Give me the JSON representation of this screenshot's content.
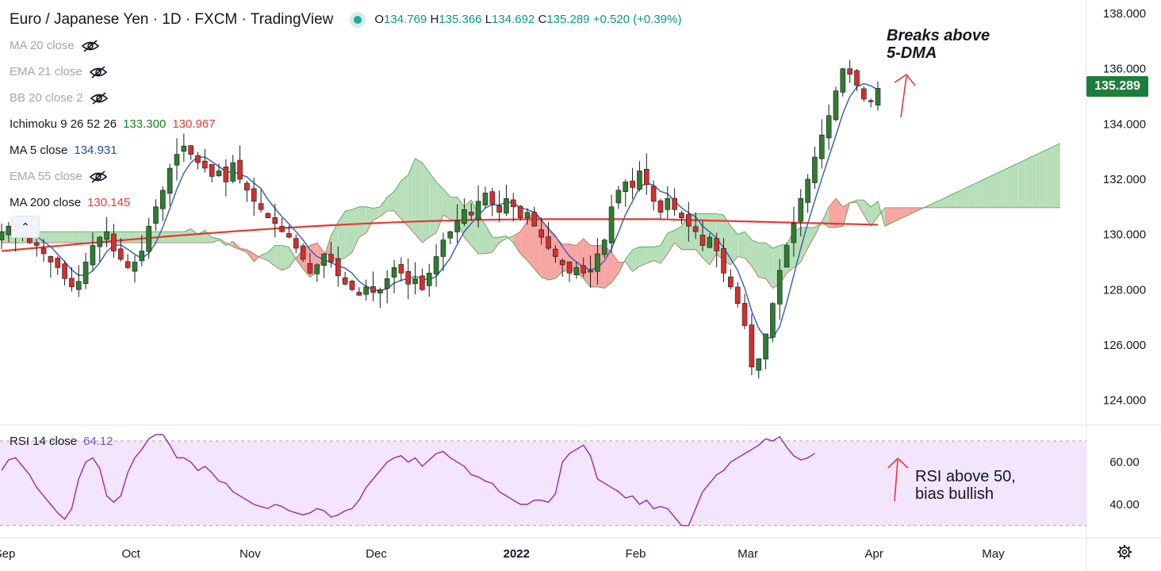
{
  "header": {
    "title": "Euro / Japanese Yen · 1D · FXCM · TradingView",
    "ohlc": {
      "o_label": "O",
      "o": "134.769",
      "h_label": "H",
      "h": "135.366",
      "l_label": "L",
      "l": "134.692",
      "c_label": "C",
      "c": "135.289",
      "change": "+0.520 (+0.39%)"
    }
  },
  "indicators": [
    {
      "name": "MA 20 close",
      "hidden": true,
      "values": []
    },
    {
      "name": "EMA 21 close",
      "hidden": true,
      "values": []
    },
    {
      "name": "BB 20 close 2",
      "hidden": true,
      "values": []
    },
    {
      "name": "Ichimoku 9 26 52 26",
      "hidden": false,
      "values": [
        {
          "v": "133.300",
          "color": "#1b7d1b"
        },
        {
          "v": "130.967",
          "color": "#e53935"
        }
      ]
    },
    {
      "name": "MA 5 close",
      "hidden": false,
      "values": [
        {
          "v": "134.931",
          "color": "#1e4fa8"
        }
      ]
    },
    {
      "name": "EMA 55 close",
      "hidden": true,
      "values": []
    },
    {
      "name": "MA 200 close",
      "hidden": false,
      "values": [
        {
          "v": "130.145",
          "color": "#e53935"
        }
      ]
    }
  ],
  "price_tag": "135.289",
  "annotations": {
    "top": [
      "Breaks above",
      "5-DMA"
    ],
    "bottom": [
      "RSI above 50,",
      "bias bullish"
    ]
  },
  "rsi": {
    "name": "RSI 14 close",
    "value": "64.12"
  },
  "colors": {
    "up": "#2e7d32",
    "down": "#d32f2f",
    "ma5": "#3e63b8",
    "ma200": "#e53935",
    "rsi": "#9c27b0",
    "cloud_bull": "#b7dfb9",
    "cloud_bear": "#f7a6a3",
    "rsi_band": "#f3e5fc"
  },
  "chart_data": [
    {
      "type": "candlestick",
      "title": "Euro / Japanese Yen · 1D · FXCM",
      "x_ticks": [
        "Sep",
        "Oct",
        "Nov",
        "Dec",
        "2022",
        "Feb",
        "Mar",
        "Apr",
        "May"
      ],
      "y_ticks": [
        "124.000",
        "126.000",
        "128.000",
        "130.000",
        "132.000",
        "134.000",
        "136.000",
        "138.000"
      ],
      "ylim": [
        123.5,
        138.2
      ],
      "close": [
        130.1,
        130.3,
        129.9,
        130.2,
        129.7,
        129.6,
        129.3,
        129.0,
        128.8,
        128.4,
        128.1,
        128.3,
        129.0,
        129.6,
        129.9,
        130.1,
        129.4,
        129.1,
        128.8,
        129.0,
        129.4,
        130.3,
        131.0,
        131.6,
        132.4,
        132.9,
        133.2,
        132.9,
        132.6,
        132.4,
        132.1,
        132.3,
        131.9,
        132.6,
        132.0,
        131.6,
        131.2,
        130.9,
        130.6,
        130.4,
        130.1,
        129.9,
        129.5,
        129.1,
        128.6,
        128.9,
        129.3,
        129.0,
        128.5,
        128.2,
        128.0,
        127.8,
        128.1,
        127.9,
        128.0,
        128.4,
        128.8,
        128.6,
        128.2,
        128.4,
        128.0,
        128.6,
        129.2,
        129.8,
        130.1,
        130.5,
        130.9,
        130.7,
        131.2,
        131.5,
        131.1,
        130.8,
        131.3,
        131.0,
        130.6,
        130.8,
        130.3,
        129.9,
        129.5,
        129.2,
        128.9,
        128.6,
        128.8,
        128.6,
        128.7,
        129.3,
        129.8,
        131.0,
        131.6,
        131.9,
        131.7,
        132.3,
        131.8,
        131.2,
        130.8,
        131.3,
        130.9,
        130.6,
        130.3,
        130.1,
        129.6,
        129.9,
        129.4,
        128.6,
        128.1,
        127.5,
        126.7,
        125.2,
        125.5,
        126.4,
        127.5,
        128.7,
        129.6,
        130.4,
        131.3,
        132.0,
        132.8,
        133.6,
        134.3,
        135.2,
        136.0,
        135.8,
        135.4,
        134.9,
        134.8,
        135.29
      ],
      "ma5_last": 134.931,
      "ma200_last": 130.145,
      "ichimoku_leading_a_last": 133.3,
      "ichimoku_leading_b_last": 130.967
    },
    {
      "type": "line",
      "title": "RSI 14 close",
      "y_ticks": [
        "40.00",
        "60.00"
      ],
      "ylim": [
        25,
        76
      ],
      "band": [
        30,
        70
      ],
      "values": [
        56,
        61,
        62,
        58,
        54,
        48,
        44,
        40,
        36,
        33,
        38,
        52,
        60,
        62,
        57,
        44,
        41,
        44,
        55,
        62,
        66,
        71,
        73,
        73,
        68,
        62,
        62,
        60,
        56,
        58,
        55,
        51,
        50,
        46,
        44,
        42,
        40,
        39,
        38,
        40,
        39,
        37,
        36,
        35,
        36,
        38,
        37,
        34,
        35,
        37,
        38,
        42,
        48,
        52,
        56,
        60,
        62,
        63,
        60,
        62,
        58,
        61,
        64,
        65,
        62,
        60,
        58,
        54,
        53,
        51,
        50,
        46,
        44,
        42,
        40,
        40,
        42,
        42,
        41,
        45,
        60,
        64,
        66,
        68,
        63,
        52,
        50,
        48,
        46,
        43,
        44,
        40,
        42,
        38,
        39,
        38,
        34,
        30,
        30,
        38,
        46,
        50,
        54,
        56,
        60,
        62,
        64,
        66,
        68,
        71,
        70,
        72,
        67,
        63,
        61,
        62,
        64.12
      ]
    }
  ]
}
